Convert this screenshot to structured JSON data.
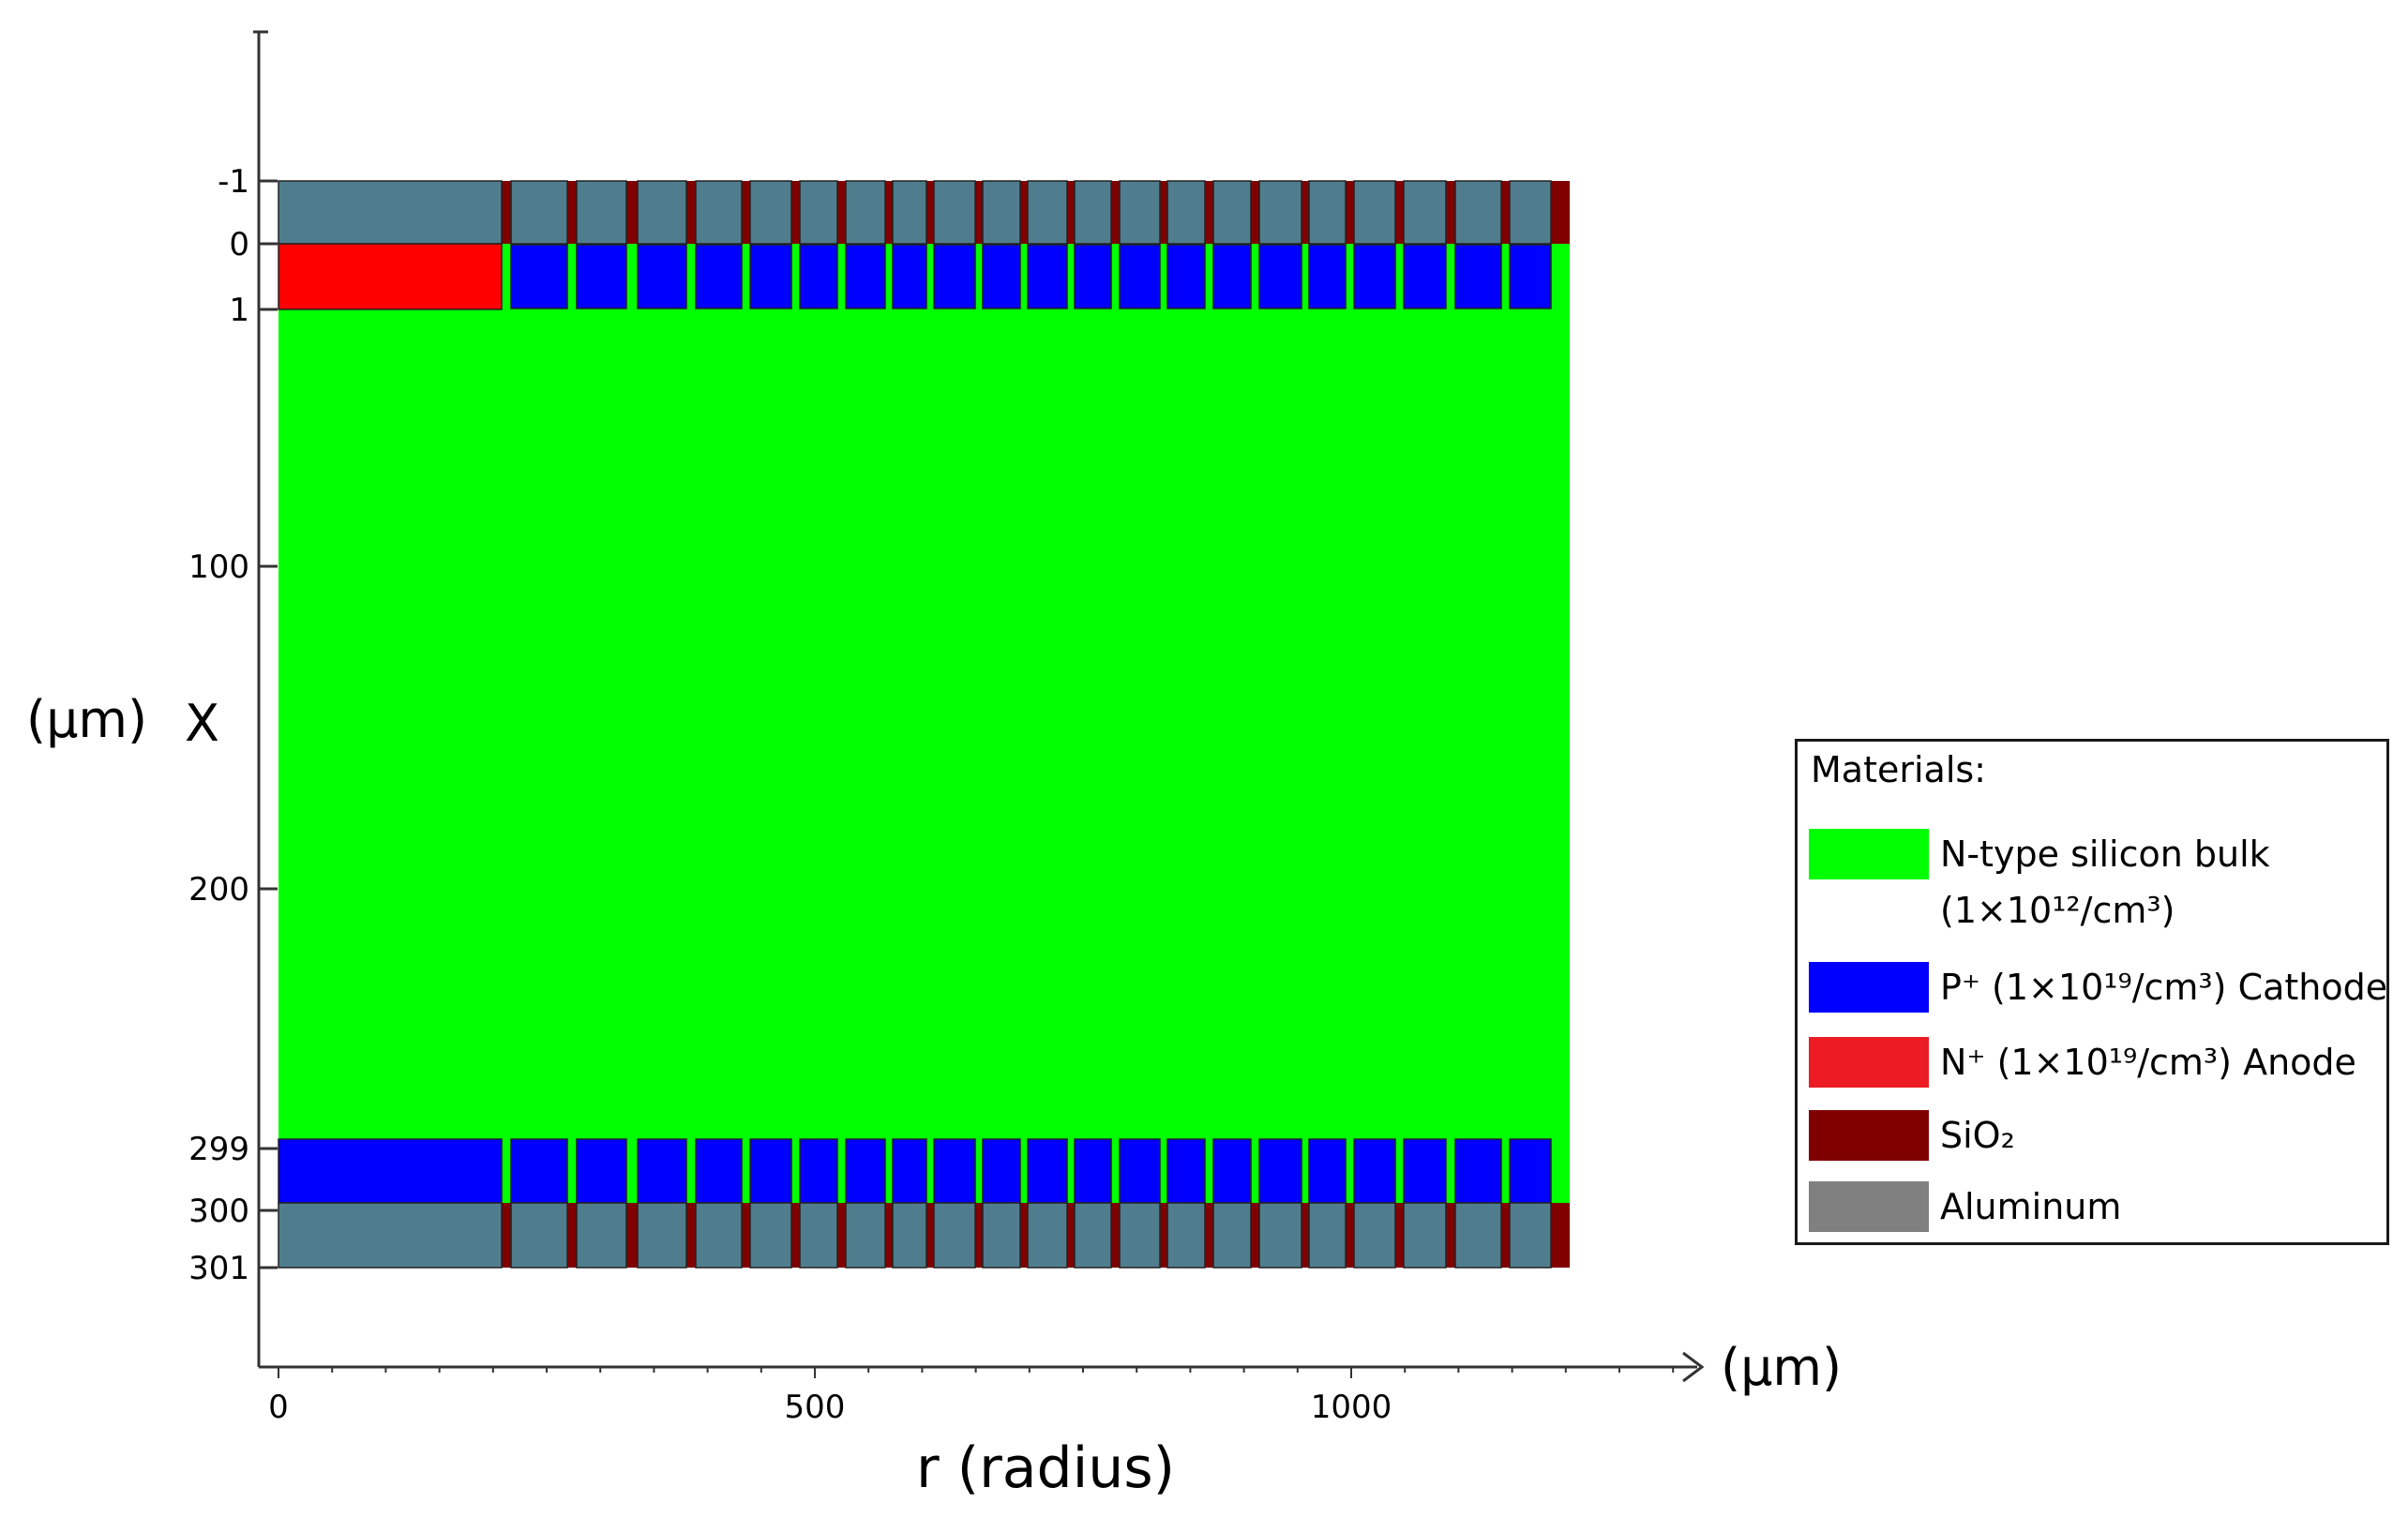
{
  "diagram": {
    "y_axis": {
      "unit": "(μm)",
      "symbol": "X",
      "ticks": [
        "-1",
        "0",
        "1",
        "100",
        "200",
        "299",
        "300",
        "301"
      ]
    },
    "x_axis": {
      "unit": "(μm)",
      "label": "r (radius)",
      "ticks": [
        "0",
        "500",
        "1000"
      ]
    },
    "colors": {
      "bulk": "#00ff00",
      "p_plus": "#0000ff",
      "n_plus": "#ff0000",
      "sio2": "#800000",
      "aluminum": "#4f7d8e",
      "aluminum_legend": "#808080",
      "n_plus_legend": "#ed1c24"
    }
  },
  "legend": {
    "title": "Materials:",
    "items": [
      {
        "label": "N-type silicon bulk",
        "label2": "(1×10¹²/cm³)"
      },
      {
        "label": "P⁺ (1×10¹⁹/cm³)  Cathode"
      },
      {
        "label": "N⁺ (1×10¹⁹/cm³)  Anode"
      },
      {
        "label": "SiO₂"
      },
      {
        "label": "Aluminum"
      }
    ]
  }
}
